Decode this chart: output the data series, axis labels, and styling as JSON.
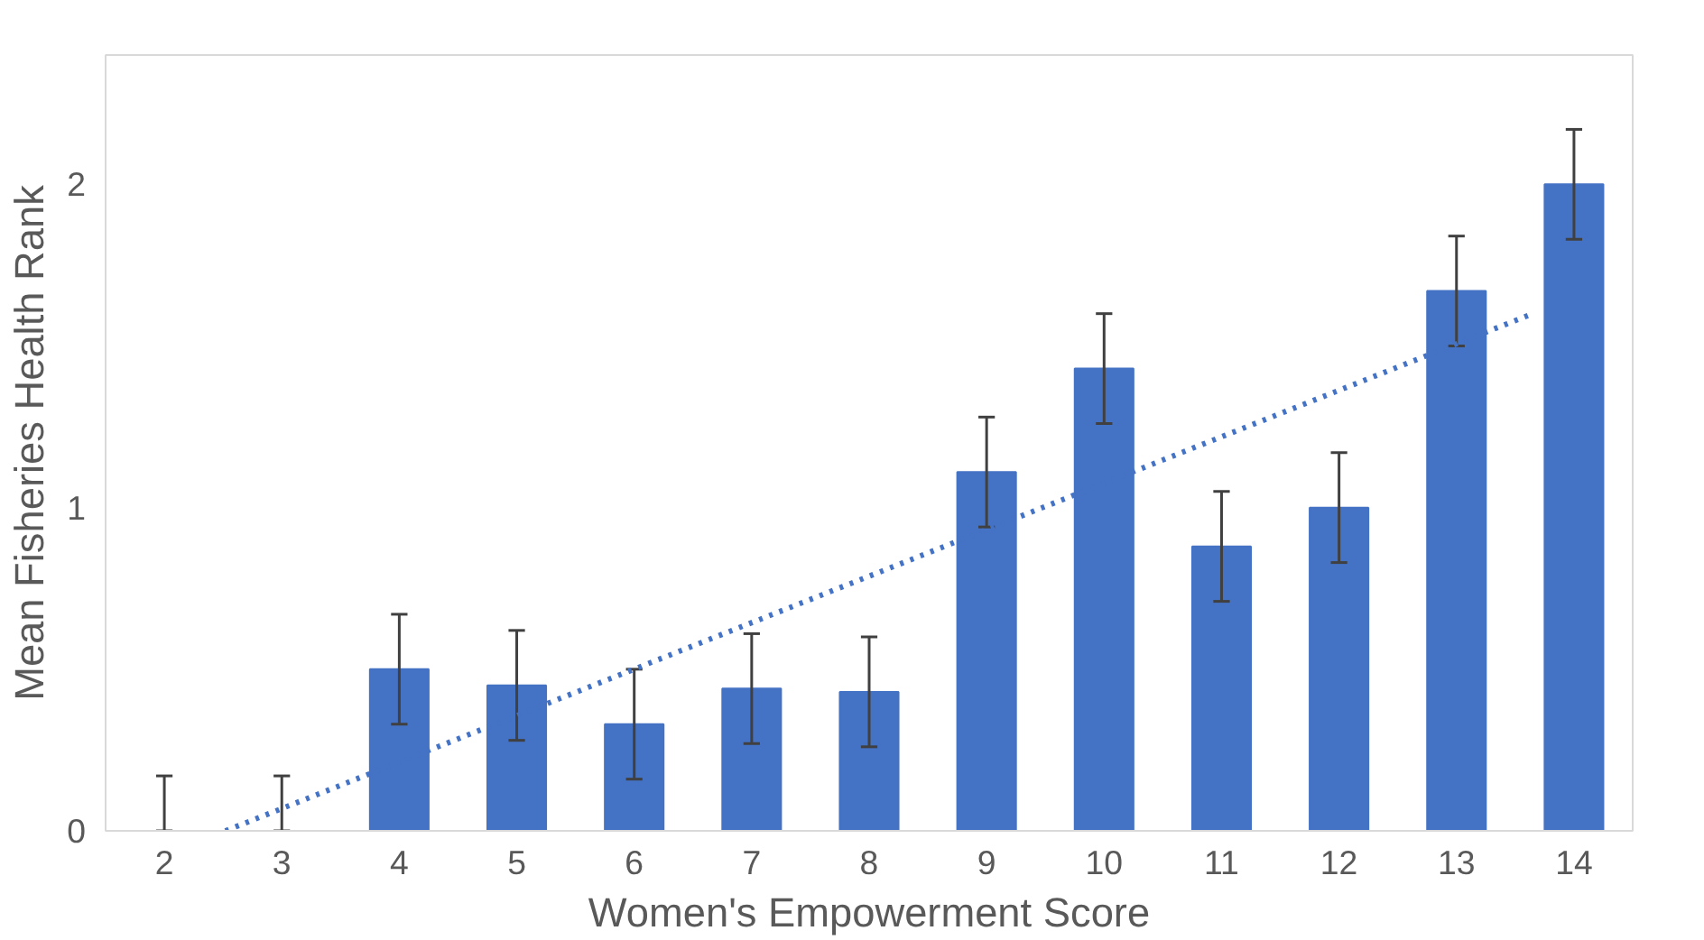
{
  "chart_data": {
    "type": "bar",
    "xlabel": "Women's Empowerment Score",
    "ylabel": "Mean Fisheries Health Rank",
    "x": [
      2,
      3,
      4,
      5,
      6,
      7,
      8,
      9,
      10,
      11,
      12,
      13,
      14
    ],
    "xlim": [
      1.5,
      14.5
    ],
    "xticks": [
      2,
      3,
      4,
      5,
      6,
      7,
      8,
      9,
      10,
      11,
      12,
      13,
      14
    ],
    "ylim": [
      0,
      2.4
    ],
    "yticks": [
      0,
      1,
      2
    ],
    "grid": false,
    "series": [
      {
        "color": "#4472c4",
        "values": [
          0,
          0,
          0.5,
          0.45,
          0.33,
          0.44,
          0.43,
          1.11,
          1.43,
          0.88,
          1.0,
          1.67,
          2.0
        ],
        "errors": [
          [
            0,
            0.17
          ],
          [
            0,
            0.17
          ],
          0.17,
          0.17,
          0.17,
          0.17,
          0.17,
          0.17,
          0.17,
          0.17,
          0.17,
          0.17,
          0.17
        ]
      },
      {
        "type": "line",
        "color": "#4472c4",
        "line_style": "dotted",
        "x": [
          2.52,
          13.65
        ],
        "values": [
          0,
          1.6
        ]
      }
    ]
  }
}
